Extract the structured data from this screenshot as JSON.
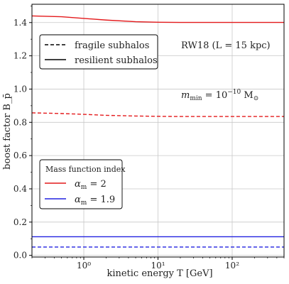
{
  "chart_data": {
    "type": "line",
    "xlabel": "kinetic energy T [GeV]",
    "ylabel": "boost factor B_p̄",
    "xscale": "log",
    "xlim": [
      0.2,
      500
    ],
    "ylim": [
      -0.01,
      1.51
    ],
    "grid": true,
    "x_ticks": [
      {
        "value": 1,
        "label": "10⁰"
      },
      {
        "value": 10,
        "label": "10¹"
      },
      {
        "value": 100,
        "label": "10²"
      }
    ],
    "y_ticks": [
      {
        "value": 0.0,
        "label": "0.0"
      },
      {
        "value": 0.2,
        "label": "0.2"
      },
      {
        "value": 0.4,
        "label": "0.4"
      },
      {
        "value": 0.6,
        "label": "0.6"
      },
      {
        "value": 0.8,
        "label": "0.8"
      },
      {
        "value": 1.0,
        "label": "1.0"
      },
      {
        "value": 1.2,
        "label": "1.2"
      },
      {
        "value": 1.4,
        "label": "1.4"
      }
    ],
    "series": [
      {
        "key": "am2-resilient",
        "color": "#e41a1c",
        "dash": "solid",
        "points": [
          [
            0.2,
            1.44
          ],
          [
            0.5,
            1.435
          ],
          [
            1,
            1.425
          ],
          [
            2,
            1.415
          ],
          [
            5,
            1.405
          ],
          [
            10,
            1.402
          ],
          [
            20,
            1.401
          ],
          [
            50,
            1.401
          ],
          [
            100,
            1.401
          ],
          [
            200,
            1.401
          ],
          [
            500,
            1.401
          ]
        ]
      },
      {
        "key": "am2-fragile",
        "color": "#e41a1c",
        "dash": "dashed",
        "points": [
          [
            0.2,
            0.857
          ],
          [
            0.5,
            0.853
          ],
          [
            1,
            0.848
          ],
          [
            2,
            0.842
          ],
          [
            5,
            0.838
          ],
          [
            10,
            0.836
          ],
          [
            20,
            0.835
          ],
          [
            50,
            0.835
          ],
          [
            100,
            0.835
          ],
          [
            200,
            0.835
          ],
          [
            500,
            0.835
          ]
        ]
      },
      {
        "key": "am19-resilient",
        "color": "#2222e0",
        "dash": "solid",
        "points": [
          [
            0.2,
            0.112
          ],
          [
            1,
            0.112
          ],
          [
            10,
            0.112
          ],
          [
            100,
            0.112
          ],
          [
            500,
            0.112
          ]
        ]
      },
      {
        "key": "am19-fragile",
        "color": "#2222e0",
        "dash": "dashed",
        "points": [
          [
            0.2,
            0.05
          ],
          [
            1,
            0.05
          ],
          [
            10,
            0.05
          ],
          [
            100,
            0.05
          ],
          [
            500,
            0.05
          ]
        ]
      }
    ],
    "legend_style": {
      "placement": "upper-left",
      "entries": [
        {
          "label": "fragile subhalos",
          "dash": "dashed"
        },
        {
          "label": "resilient subhalos",
          "dash": "solid"
        }
      ]
    },
    "legend_color": {
      "placement": "lower-left",
      "title": "Mass function index",
      "entries": [
        {
          "label": "αm = 2",
          "color": "#e41a1c",
          "base": "α",
          "sub": "m",
          "rest": " = 2"
        },
        {
          "label": "αm = 1.9",
          "color": "#2222e0",
          "base": "α",
          "sub": "m",
          "rest": " = 1.9"
        }
      ]
    },
    "annotations": {
      "model": "RW18 (L = 15 kpc)",
      "mmin_base": "m",
      "mmin_sub": "min",
      "mmin_eq": " = 10",
      "mmin_exp": "−10",
      "mmin_unit": " M",
      "mmin_unit_sub": "⊙"
    }
  }
}
